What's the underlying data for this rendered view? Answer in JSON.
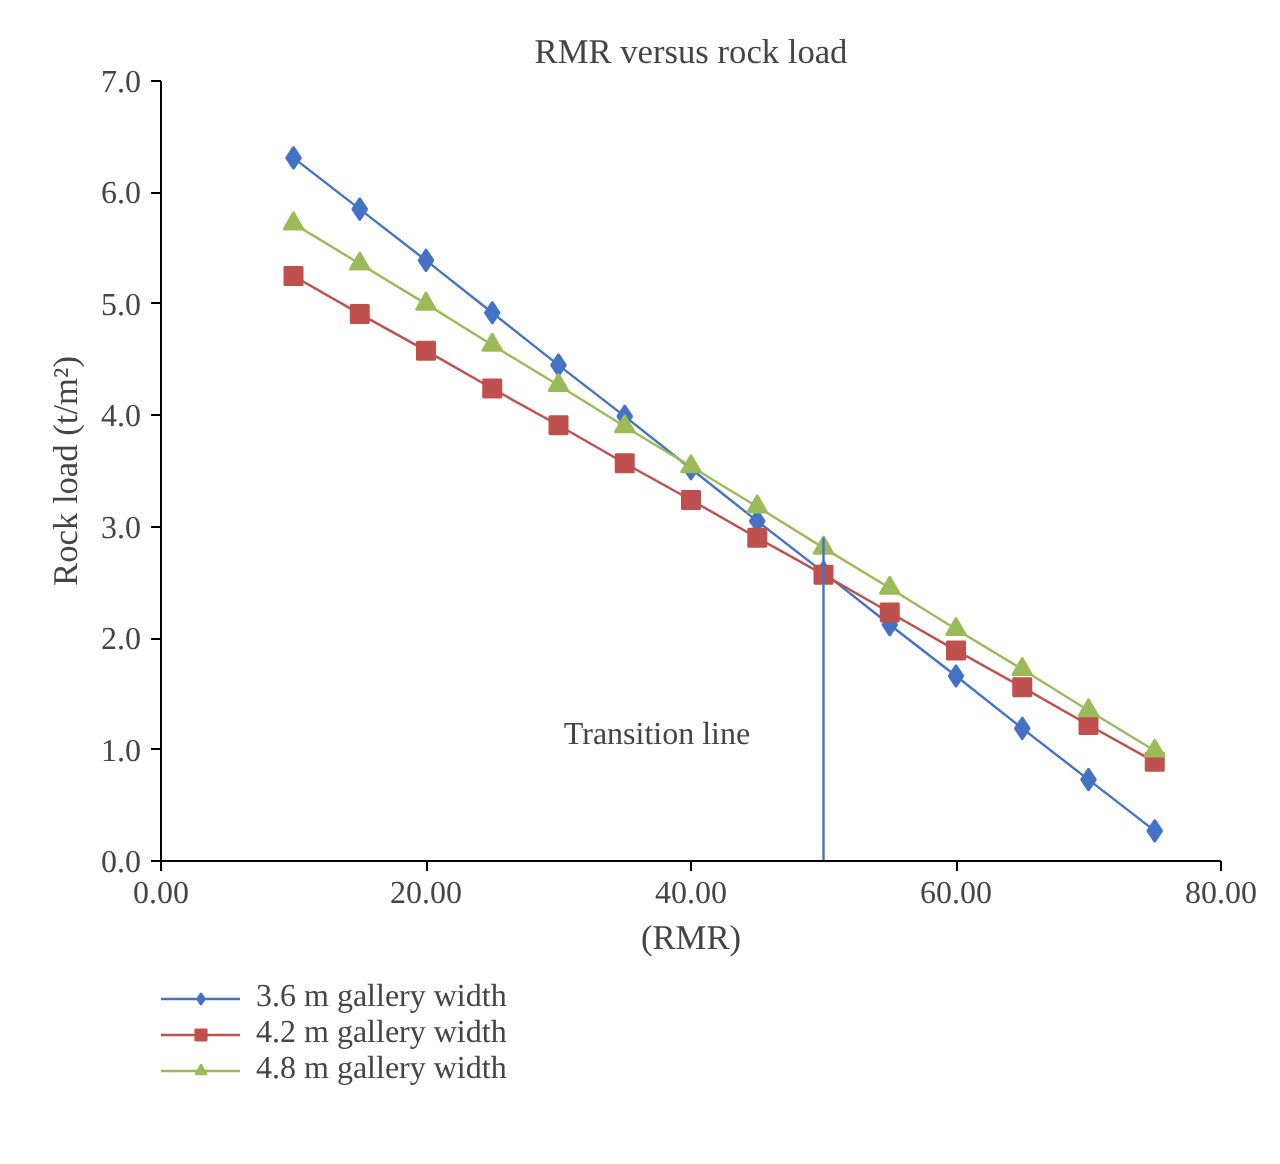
{
  "chart_data": {
    "type": "line",
    "title": "RMR versus rock load",
    "xlabel": "(RMR)",
    "ylabel": "Rock load (t/m²)",
    "x": [
      10,
      15,
      20,
      25,
      30,
      35,
      40,
      45,
      50,
      55,
      60,
      65,
      70,
      75
    ],
    "xlim": [
      0,
      80
    ],
    "xticks": [
      {
        "value": 0,
        "label": "0.00"
      },
      {
        "value": 20,
        "label": "20.00"
      },
      {
        "value": 40,
        "label": "40.00"
      },
      {
        "value": 60,
        "label": "60.00"
      },
      {
        "value": 80,
        "label": "80.00"
      }
    ],
    "ylim": [
      0,
      7
    ],
    "yticks": [
      {
        "value": 0,
        "label": "0.0"
      },
      {
        "value": 1,
        "label": "1.0"
      },
      {
        "value": 2,
        "label": "2.0"
      },
      {
        "value": 3,
        "label": "3.0"
      },
      {
        "value": 4,
        "label": "4.0"
      },
      {
        "value": 5,
        "label": "5.0"
      },
      {
        "value": 6,
        "label": "6.0"
      },
      {
        "value": 7,
        "label": "7.0"
      }
    ],
    "grid": false,
    "legend": "bottom left",
    "series": [
      {
        "name": "3.6 m gallery width",
        "color": "#4472c4",
        "marker": "diamond",
        "values": [
          6.31,
          5.85,
          5.39,
          4.92,
          4.45,
          3.99,
          3.52,
          3.05,
          2.59,
          2.12,
          1.66,
          1.19,
          0.73,
          0.27
        ]
      },
      {
        "name": "4.2 m gallery width",
        "color": "#c0504d",
        "marker": "square",
        "values": [
          5.25,
          4.91,
          4.58,
          4.24,
          3.91,
          3.57,
          3.24,
          2.9,
          2.57,
          2.23,
          1.89,
          1.56,
          1.22,
          0.89
        ]
      },
      {
        "name": "4.8 m gallery width",
        "color": "#9bbb59",
        "marker": "triangle",
        "values": [
          5.72,
          5.36,
          5.0,
          4.63,
          4.27,
          3.9,
          3.54,
          3.18,
          2.81,
          2.45,
          2.08,
          1.72,
          1.35,
          0.99
        ]
      },
      {
        "color": "#4472c4",
        "marker": "none",
        "x": [
          50,
          50
        ],
        "values": [
          0,
          2.9
        ]
      }
    ],
    "annotations": [
      "Transition line"
    ]
  }
}
